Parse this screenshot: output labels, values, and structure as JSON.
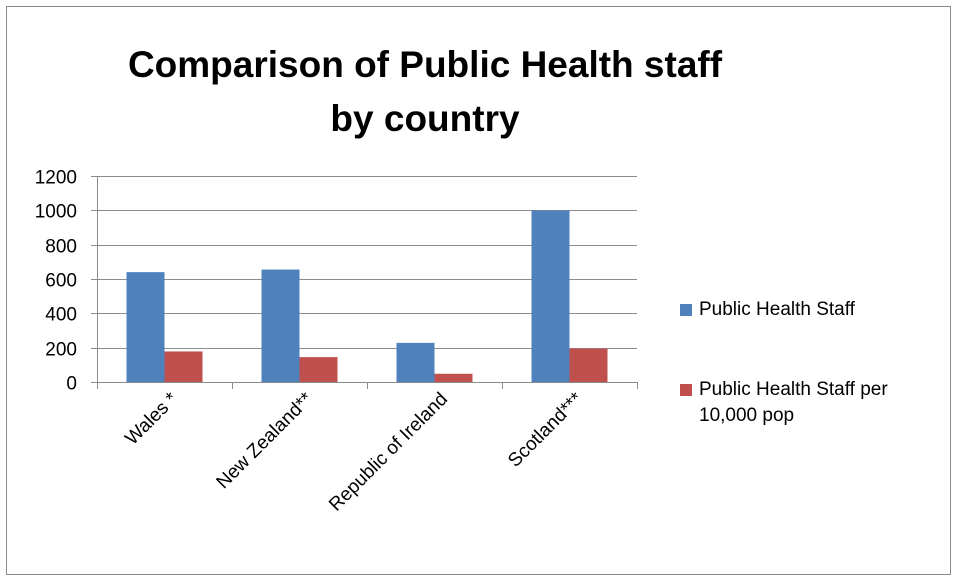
{
  "chart_data": {
    "type": "bar",
    "title": "Comparison of Public Health staff by country",
    "categories": [
      "Wales *",
      "New Zealand**",
      "Republic of Ireland",
      "Scotland***"
    ],
    "series": [
      {
        "name": "Public Health Staff",
        "values": [
          640,
          655,
          228,
          1000
        ],
        "color": "#4F81BD"
      },
      {
        "name": "Public Health Staff per 10,000 pop",
        "values": [
          178,
          145,
          48,
          195
        ],
        "color": "#C0504D"
      }
    ],
    "xlabel": "",
    "ylabel": "",
    "ylim": [
      0,
      1200
    ],
    "yticks": [
      "0",
      "200",
      "400",
      "600",
      "800",
      "1000",
      "1200"
    ],
    "grid": true,
    "legend_position": "right"
  }
}
